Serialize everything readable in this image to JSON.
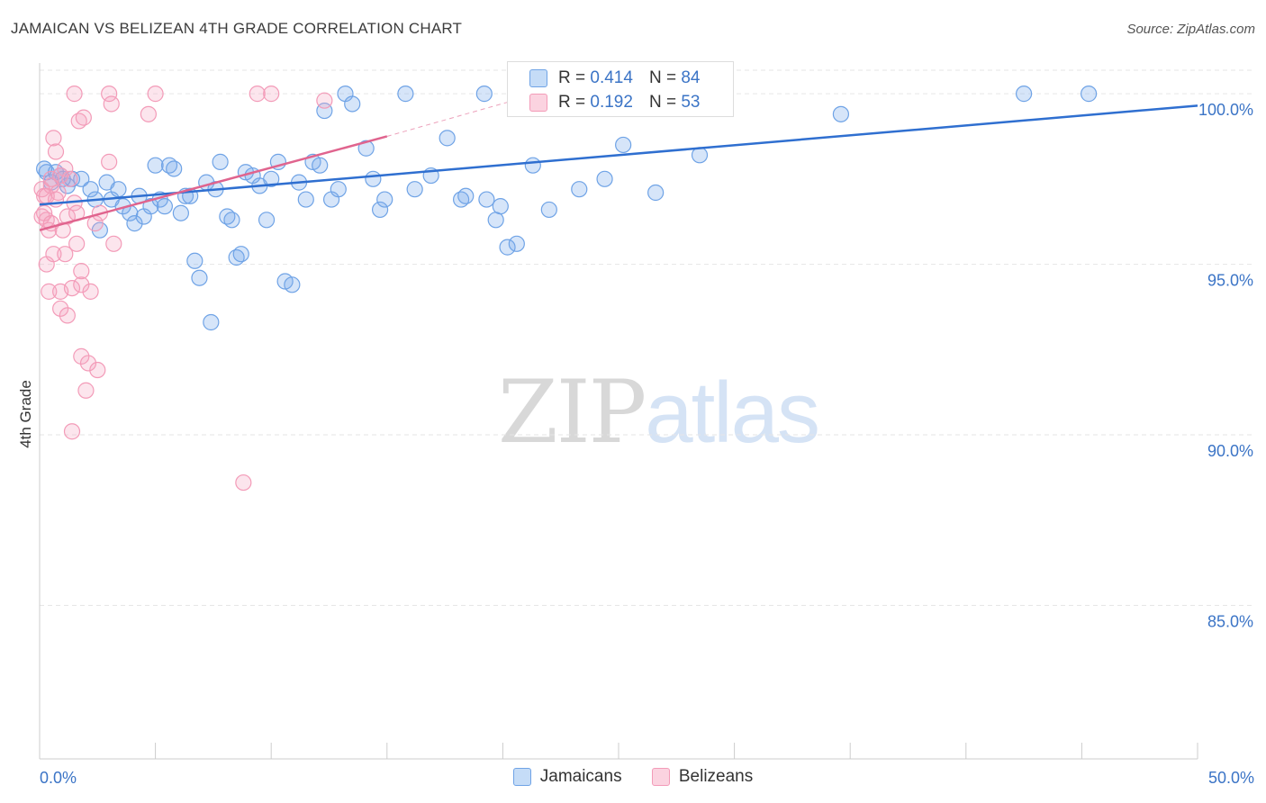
{
  "title": "JAMAICAN VS BELIZEAN 4TH GRADE CORRELATION CHART",
  "source": "Source: ZipAtlas.com",
  "watermark": {
    "part1": "ZIP",
    "part2": "atlas"
  },
  "stats": [
    {
      "r_label": "R =",
      "r_value": "0.414",
      "n_label": "N =",
      "n_value": "84",
      "color": "#6fa3e6"
    },
    {
      "r_label": "R =",
      "r_value": "0.192",
      "n_label": "N =",
      "n_value": "53",
      "color": "#f39bb8"
    }
  ],
  "legend": [
    {
      "label": "Jamaicans",
      "color": "#6fa3e6"
    },
    {
      "label": "Belizeans",
      "color": "#f39bb8"
    }
  ],
  "colors": {
    "jamaicans_line": "#2f6fd0",
    "belizeans_line": "#e0648e",
    "tick_label": "#3b74c6",
    "grid": "#e6e6e6"
  },
  "chart_data": {
    "type": "scatter",
    "title": "JAMAICAN VS BELIZEAN 4TH GRADE CORRELATION CHART",
    "xlabel": "",
    "ylabel": "4th Grade",
    "xlim": [
      0,
      50
    ],
    "ylim": [
      80.5,
      100.9
    ],
    "x_tick_labels": [
      "0.0%",
      "50.0%"
    ],
    "y_ticks": [
      85,
      90,
      95,
      100
    ],
    "y_tick_labels": [
      "85.0%",
      "90.0%",
      "95.0%",
      "100.0%"
    ],
    "grid": true,
    "legend_position": "bottom",
    "series": [
      {
        "name": "Jamaicans",
        "color": "#6fa3e6",
        "trend": {
          "x": [
            0,
            50
          ],
          "y": [
            96.75,
            99.65
          ]
        },
        "points": [
          [
            0.3,
            97.7
          ],
          [
            0.5,
            97.4
          ],
          [
            0.7,
            97.7
          ],
          [
            0.9,
            97.6
          ],
          [
            1.2,
            97.3
          ],
          [
            1.4,
            97.5
          ],
          [
            1.8,
            97.5
          ],
          [
            2.2,
            97.2
          ],
          [
            2.4,
            96.9
          ],
          [
            2.6,
            96.0
          ],
          [
            2.9,
            97.4
          ],
          [
            3.1,
            96.9
          ],
          [
            3.4,
            97.2
          ],
          [
            3.6,
            96.7
          ],
          [
            3.9,
            96.5
          ],
          [
            4.1,
            96.2
          ],
          [
            4.3,
            97.0
          ],
          [
            4.5,
            96.4
          ],
          [
            4.8,
            96.7
          ],
          [
            5.0,
            97.9
          ],
          [
            5.2,
            96.9
          ],
          [
            5.4,
            96.7
          ],
          [
            5.6,
            97.9
          ],
          [
            5.8,
            97.8
          ],
          [
            6.1,
            96.5
          ],
          [
            6.3,
            97.0
          ],
          [
            6.5,
            97.0
          ],
          [
            6.7,
            95.1
          ],
          [
            6.9,
            94.6
          ],
          [
            7.2,
            97.4
          ],
          [
            7.4,
            93.3
          ],
          [
            7.6,
            97.2
          ],
          [
            7.8,
            98.0
          ],
          [
            8.1,
            96.4
          ],
          [
            8.3,
            96.3
          ],
          [
            8.5,
            95.2
          ],
          [
            8.7,
            95.3
          ],
          [
            8.9,
            97.7
          ],
          [
            9.2,
            97.6
          ],
          [
            9.5,
            97.3
          ],
          [
            9.8,
            96.3
          ],
          [
            10.0,
            97.5
          ],
          [
            10.3,
            98.0
          ],
          [
            10.6,
            94.5
          ],
          [
            10.9,
            94.4
          ],
          [
            11.2,
            97.4
          ],
          [
            11.5,
            96.9
          ],
          [
            11.8,
            98.0
          ],
          [
            12.1,
            97.9
          ],
          [
            12.3,
            99.5
          ],
          [
            12.6,
            96.9
          ],
          [
            12.9,
            97.2
          ],
          [
            13.2,
            100.0
          ],
          [
            13.5,
            99.7
          ],
          [
            14.1,
            98.4
          ],
          [
            14.4,
            97.5
          ],
          [
            14.7,
            96.6
          ],
          [
            14.9,
            96.9
          ],
          [
            15.8,
            100.0
          ],
          [
            16.2,
            97.2
          ],
          [
            16.9,
            97.6
          ],
          [
            17.6,
            98.7
          ],
          [
            18.2,
            96.9
          ],
          [
            18.4,
            97.0
          ],
          [
            19.2,
            100.0
          ],
          [
            19.3,
            96.9
          ],
          [
            19.7,
            96.3
          ],
          [
            19.9,
            96.7
          ],
          [
            20.2,
            95.5
          ],
          [
            20.6,
            95.6
          ],
          [
            21.3,
            97.9
          ],
          [
            22.0,
            96.6
          ],
          [
            23.3,
            97.2
          ],
          [
            24.4,
            97.5
          ],
          [
            25.2,
            98.5
          ],
          [
            26.6,
            97.1
          ],
          [
            27.1,
            100.0
          ],
          [
            28.5,
            98.2
          ],
          [
            28.9,
            100.0
          ],
          [
            34.6,
            99.4
          ],
          [
            42.5,
            100.0
          ],
          [
            45.3,
            100.0
          ],
          [
            0.2,
            97.8
          ],
          [
            1.0,
            97.5
          ]
        ]
      },
      {
        "name": "Belizeans",
        "color": "#f39bb8",
        "trend": {
          "x": [
            0,
            15
          ],
          "y": [
            96.0,
            98.75
          ]
        },
        "trend_extension": {
          "x": [
            15,
            21.5
          ],
          "y": [
            98.75,
            100.0
          ]
        },
        "points": [
          [
            0.1,
            97.2
          ],
          [
            0.1,
            96.4
          ],
          [
            0.2,
            97.0
          ],
          [
            0.2,
            96.5
          ],
          [
            0.3,
            96.3
          ],
          [
            0.3,
            95.0
          ],
          [
            0.4,
            96.0
          ],
          [
            0.4,
            94.2
          ],
          [
            0.5,
            97.3
          ],
          [
            0.5,
            96.2
          ],
          [
            0.6,
            98.7
          ],
          [
            0.6,
            95.3
          ],
          [
            0.7,
            98.3
          ],
          [
            0.7,
            96.9
          ],
          [
            0.8,
            97.1
          ],
          [
            0.9,
            94.2
          ],
          [
            0.9,
            93.7
          ],
          [
            1.0,
            96.0
          ],
          [
            1.1,
            97.8
          ],
          [
            1.1,
            95.3
          ],
          [
            1.2,
            96.4
          ],
          [
            1.2,
            93.5
          ],
          [
            1.3,
            97.5
          ],
          [
            1.4,
            94.3
          ],
          [
            1.5,
            96.8
          ],
          [
            1.6,
            96.5
          ],
          [
            1.6,
            95.6
          ],
          [
            1.7,
            99.2
          ],
          [
            1.8,
            94.8
          ],
          [
            1.8,
            94.4
          ],
          [
            1.8,
            92.3
          ],
          [
            1.9,
            99.3
          ],
          [
            2.0,
            91.3
          ],
          [
            2.1,
            92.1
          ],
          [
            2.2,
            94.2
          ],
          [
            2.4,
            96.2
          ],
          [
            2.5,
            91.9
          ],
          [
            2.6,
            96.5
          ],
          [
            1.4,
            90.1
          ],
          [
            3.0,
            98.0
          ],
          [
            3.2,
            95.6
          ],
          [
            3.1,
            99.7
          ],
          [
            1.5,
            100.0
          ],
          [
            3.0,
            100.0
          ],
          [
            4.7,
            99.4
          ],
          [
            5.0,
            100.0
          ],
          [
            8.8,
            88.6
          ],
          [
            9.4,
            100.0
          ],
          [
            10.0,
            100.0
          ],
          [
            12.3,
            99.8
          ],
          [
            0.5,
            97.5
          ],
          [
            0.9,
            97.6
          ],
          [
            0.3,
            97.0
          ]
        ]
      }
    ]
  }
}
